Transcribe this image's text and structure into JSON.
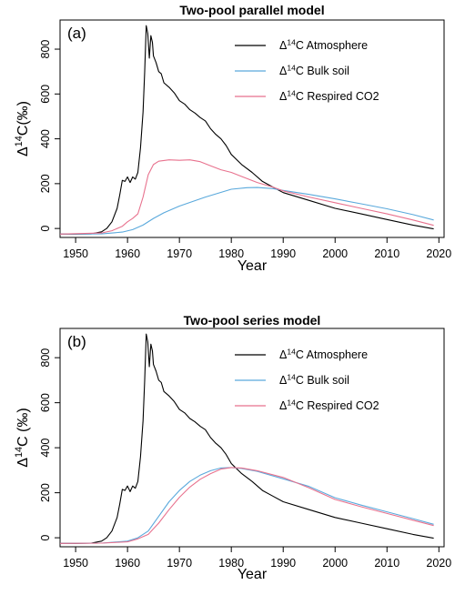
{
  "chart_data": [
    {
      "type": "line",
      "panel_label": "(a)",
      "title": "Two-pool parallel model",
      "xlabel": "Year",
      "ylabel_base": "Δ",
      "ylabel_sup": "14",
      "ylabel_rest": "C(‰)",
      "xlim": [
        1947,
        2021
      ],
      "ylim": [
        -40,
        930
      ],
      "x_ticks": [
        1950,
        1960,
        1970,
        1980,
        1990,
        2000,
        2010,
        2020
      ],
      "y_ticks": [
        0,
        200,
        400,
        600,
        800
      ],
      "grid": false,
      "legend_position": "top-right",
      "series": [
        {
          "name_base": "Δ",
          "name_sup": "14",
          "name_rest": "C Atmosphere",
          "color": "#000000",
          "points": [
            [
              1947,
              -25
            ],
            [
              1950,
              -25
            ],
            [
              1953,
              -24
            ],
            [
              1955,
              -15
            ],
            [
              1956,
              0
            ],
            [
              1957,
              30
            ],
            [
              1958,
              90
            ],
            [
              1958.5,
              150
            ],
            [
              1959,
              215
            ],
            [
              1959.5,
              210
            ],
            [
              1960,
              230
            ],
            [
              1960.5,
              205
            ],
            [
              1961,
              230
            ],
            [
              1961.5,
              220
            ],
            [
              1962,
              250
            ],
            [
              1962.5,
              360
            ],
            [
              1963,
              520
            ],
            [
              1963.3,
              700
            ],
            [
              1963.6,
              905
            ],
            [
              1963.9,
              870
            ],
            [
              1964.2,
              760
            ],
            [
              1964.5,
              860
            ],
            [
              1964.8,
              830
            ],
            [
              1965,
              770
            ],
            [
              1965.5,
              740
            ],
            [
              1966,
              700
            ],
            [
              1966.5,
              690
            ],
            [
              1967,
              650
            ],
            [
              1968,
              630
            ],
            [
              1969,
              605
            ],
            [
              1970,
              570
            ],
            [
              1971,
              555
            ],
            [
              1972,
              530
            ],
            [
              1973,
              515
            ],
            [
              1974,
              495
            ],
            [
              1975,
              480
            ],
            [
              1976,
              445
            ],
            [
              1977,
              420
            ],
            [
              1978,
              400
            ],
            [
              1979,
              370
            ],
            [
              1980,
              330
            ],
            [
              1982,
              285
            ],
            [
              1984,
              250
            ],
            [
              1986,
              210
            ],
            [
              1988,
              185
            ],
            [
              1990,
              160
            ],
            [
              1995,
              125
            ],
            [
              2000,
              90
            ],
            [
              2005,
              65
            ],
            [
              2010,
              40
            ],
            [
              2015,
              15
            ],
            [
              2019,
              -2
            ]
          ]
        },
        {
          "name_base": "Δ",
          "name_sup": "14",
          "name_rest": "C Bulk soil",
          "color": "#5aa9dc",
          "points": [
            [
              1947,
              -25
            ],
            [
              1955,
              -24
            ],
            [
              1959,
              -16
            ],
            [
              1961,
              -5
            ],
            [
              1963,
              15
            ],
            [
              1965,
              45
            ],
            [
              1967,
              70
            ],
            [
              1970,
              100
            ],
            [
              1975,
              140
            ],
            [
              1980,
              175
            ],
            [
              1983,
              182
            ],
            [
              1985,
              183
            ],
            [
              1988,
              178
            ],
            [
              1990,
              170
            ],
            [
              1995,
              152
            ],
            [
              2000,
              132
            ],
            [
              2005,
              110
            ],
            [
              2010,
              88
            ],
            [
              2015,
              62
            ],
            [
              2019,
              38
            ]
          ]
        },
        {
          "name_base": "Δ",
          "name_sup": "14",
          "name_rest": "C Respired CO2",
          "color": "#e8728e",
          "points": [
            [
              1947,
              -25
            ],
            [
              1955,
              -20
            ],
            [
              1957,
              -10
            ],
            [
              1959,
              10
            ],
            [
              1960,
              30
            ],
            [
              1961,
              45
            ],
            [
              1962,
              65
            ],
            [
              1963,
              140
            ],
            [
              1964,
              240
            ],
            [
              1965,
              285
            ],
            [
              1966,
              300
            ],
            [
              1968,
              306
            ],
            [
              1970,
              304
            ],
            [
              1972,
              306
            ],
            [
              1974,
              298
            ],
            [
              1976,
              280
            ],
            [
              1978,
              262
            ],
            [
              1980,
              250
            ],
            [
              1982,
              232
            ],
            [
              1985,
              205
            ],
            [
              1988,
              185
            ],
            [
              1990,
              168
            ],
            [
              1995,
              140
            ],
            [
              2000,
              115
            ],
            [
              2005,
              90
            ],
            [
              2010,
              65
            ],
            [
              2015,
              38
            ],
            [
              2019,
              14
            ]
          ]
        }
      ]
    },
    {
      "type": "line",
      "panel_label": "(b)",
      "title": "Two-pool series model",
      "xlabel": "Year",
      "ylabel_base": "Δ",
      "ylabel_sup": "14",
      "ylabel_rest": "C (‰)",
      "xlim": [
        1947,
        2021
      ],
      "ylim": [
        -40,
        930
      ],
      "x_ticks": [
        1950,
        1960,
        1970,
        1980,
        1990,
        2000,
        2010,
        2020
      ],
      "y_ticks": [
        0,
        200,
        400,
        600,
        800
      ],
      "grid": false,
      "legend_position": "top-right",
      "series": [
        {
          "name_base": "Δ",
          "name_sup": "14",
          "name_rest": "C Atmosphere",
          "color": "#000000",
          "points": [
            [
              1947,
              -25
            ],
            [
              1950,
              -25
            ],
            [
              1953,
              -24
            ],
            [
              1955,
              -15
            ],
            [
              1956,
              0
            ],
            [
              1957,
              30
            ],
            [
              1958,
              90
            ],
            [
              1958.5,
              150
            ],
            [
              1959,
              215
            ],
            [
              1959.5,
              210
            ],
            [
              1960,
              230
            ],
            [
              1960.5,
              205
            ],
            [
              1961,
              230
            ],
            [
              1961.5,
              220
            ],
            [
              1962,
              250
            ],
            [
              1962.5,
              360
            ],
            [
              1963,
              520
            ],
            [
              1963.3,
              700
            ],
            [
              1963.6,
              905
            ],
            [
              1963.9,
              870
            ],
            [
              1964.2,
              760
            ],
            [
              1964.5,
              860
            ],
            [
              1964.8,
              830
            ],
            [
              1965,
              770
            ],
            [
              1965.5,
              740
            ],
            [
              1966,
              700
            ],
            [
              1966.5,
              690
            ],
            [
              1967,
              650
            ],
            [
              1968,
              630
            ],
            [
              1969,
              605
            ],
            [
              1970,
              570
            ],
            [
              1971,
              555
            ],
            [
              1972,
              530
            ],
            [
              1973,
              515
            ],
            [
              1974,
              495
            ],
            [
              1975,
              480
            ],
            [
              1976,
              445
            ],
            [
              1977,
              420
            ],
            [
              1978,
              400
            ],
            [
              1979,
              370
            ],
            [
              1980,
              330
            ],
            [
              1982,
              285
            ],
            [
              1984,
              250
            ],
            [
              1986,
              210
            ],
            [
              1988,
              185
            ],
            [
              1990,
              160
            ],
            [
              1995,
              125
            ],
            [
              2000,
              90
            ],
            [
              2005,
              65
            ],
            [
              2010,
              40
            ],
            [
              2015,
              15
            ],
            [
              2019,
              -2
            ]
          ]
        },
        {
          "name_base": "Δ",
          "name_sup": "14",
          "name_rest": "C Bulk soil",
          "color": "#5aa9dc",
          "points": [
            [
              1947,
              -25
            ],
            [
              1955,
              -24
            ],
            [
              1960,
              -15
            ],
            [
              1962,
              0
            ],
            [
              1964,
              30
            ],
            [
              1966,
              95
            ],
            [
              1968,
              160
            ],
            [
              1970,
              210
            ],
            [
              1972,
              250
            ],
            [
              1974,
              278
            ],
            [
              1976,
              298
            ],
            [
              1978,
              310
            ],
            [
              1980,
              312
            ],
            [
              1982,
              308
            ],
            [
              1985,
              295
            ],
            [
              1990,
              262
            ],
            [
              1995,
              228
            ],
            [
              2000,
              178
            ],
            [
              2005,
              145
            ],
            [
              2010,
              115
            ],
            [
              2015,
              85
            ],
            [
              2019,
              60
            ]
          ]
        },
        {
          "name_base": "Δ",
          "name_sup": "14",
          "name_rest": "C Respired CO2",
          "color": "#e8728e",
          "points": [
            [
              1947,
              -25
            ],
            [
              1955,
              -24
            ],
            [
              1960,
              -18
            ],
            [
              1962,
              -5
            ],
            [
              1964,
              15
            ],
            [
              1966,
              65
            ],
            [
              1968,
              125
            ],
            [
              1970,
              180
            ],
            [
              1972,
              225
            ],
            [
              1974,
              260
            ],
            [
              1976,
              285
            ],
            [
              1978,
              305
            ],
            [
              1980,
              312
            ],
            [
              1982,
              310
            ],
            [
              1985,
              298
            ],
            [
              1990,
              268
            ],
            [
              1995,
              222
            ],
            [
              2000,
              170
            ],
            [
              2005,
              138
            ],
            [
              2010,
              108
            ],
            [
              2015,
              78
            ],
            [
              2019,
              54
            ]
          ]
        }
      ]
    }
  ]
}
